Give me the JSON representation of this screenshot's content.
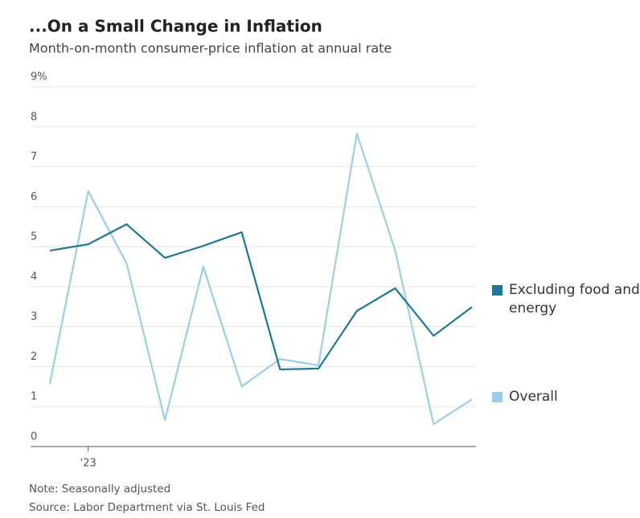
{
  "chart_data": {
    "type": "line",
    "title": "...On a Small Change in Inflation",
    "subtitle": "Month-on-month consumer-price inflation at annual rate",
    "categories": [
      null,
      "'23",
      null,
      null,
      null,
      null,
      null,
      null,
      null,
      null,
      null,
      null
    ],
    "series": [
      {
        "name": "Excluding food and energy",
        "color": "#1d7896",
        "values": [
          4.9,
          5.06,
          5.56,
          4.72,
          5.02,
          5.36,
          1.93,
          1.95,
          3.39,
          3.96,
          2.77,
          3.49
        ]
      },
      {
        "name": "Overall",
        "color": "#9dcde4",
        "values": [
          1.57,
          6.39,
          4.58,
          0.66,
          4.5,
          1.5,
          2.19,
          2.03,
          7.83,
          4.9,
          0.56,
          1.18
        ]
      }
    ],
    "ylim": [
      0,
      9
    ],
    "yticks": [
      0,
      1,
      2,
      3,
      4,
      5,
      6,
      7,
      8,
      {
        "value": 9,
        "label": "9%"
      }
    ],
    "grid": true,
    "note": "Note: Seasonally adjusted",
    "source": "Source: Labor Department via St. Louis Fed"
  }
}
